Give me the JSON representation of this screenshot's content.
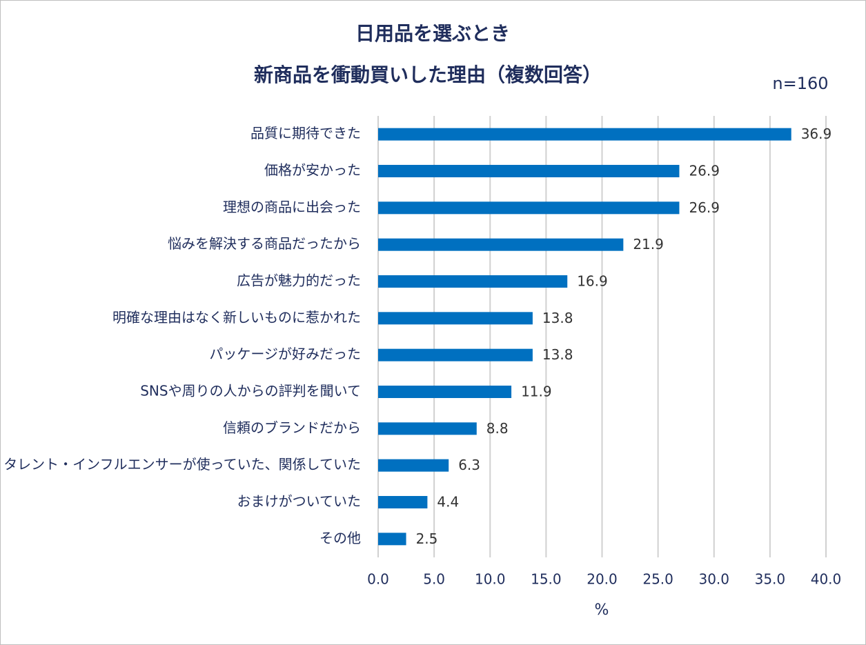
{
  "chart_data": {
    "type": "bar",
    "orientation": "horizontal",
    "title": "日用品を選ぶとき",
    "subtitle": "新商品を衝動買いした理由（複数回答）",
    "annotation": "n=160",
    "x_label": "%",
    "categories": [
      "品質に期待できた",
      "価格が安かった",
      "理想の商品に出会った",
      "悩みを解決する商品だったから",
      "広告が魅力的だった",
      "明確な理由はなく新しいものに惹かれた",
      "パッケージが好みだった",
      "SNSや周りの人からの評判を聞いて",
      "信頼のブランドだから",
      "タレント・インフルエンサーが使っていた、関係していた",
      "おまけがついていた",
      "その他"
    ],
    "values": [
      36.9,
      26.9,
      26.9,
      21.9,
      16.9,
      13.8,
      13.8,
      11.9,
      8.8,
      6.3,
      4.4,
      2.5
    ],
    "color": "#0070c0",
    "xlim": [
      0,
      40
    ],
    "xticks": [
      {
        "value": 0,
        "label": "0.0"
      },
      {
        "value": 5,
        "label": "5.0"
      },
      {
        "value": 10,
        "label": "10.0"
      },
      {
        "value": 15,
        "label": "15.0"
      },
      {
        "value": 20,
        "label": "20.0"
      },
      {
        "value": 25,
        "label": "25.0"
      },
      {
        "value": 30,
        "label": "30.0"
      },
      {
        "value": 35,
        "label": "35.0"
      },
      {
        "value": 40,
        "label": "40.0"
      }
    ],
    "grid": true
  }
}
